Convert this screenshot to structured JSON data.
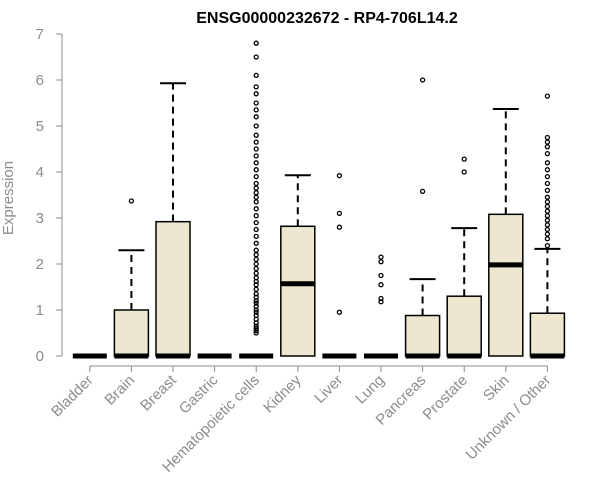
{
  "chart_data": {
    "type": "boxplot",
    "title": "ENSG00000232672 - RP4-706L14.2",
    "ylabel": "Expression",
    "xlabel": "",
    "ylim": [
      0,
      7
    ],
    "yticks": [
      0,
      1,
      2,
      3,
      4,
      5,
      6,
      7
    ],
    "box_fill": "#ede7cf",
    "box_stroke": "#000000",
    "axis_color": "#8c8c8c",
    "categories": [
      "Bladder",
      "Brain",
      "Breast",
      "Gastric",
      "Hematopoietic cells",
      "Kidney",
      "Liver",
      "Lung",
      "Pancreas",
      "Prostate",
      "Skin",
      "Unknown / Other"
    ],
    "boxes": [
      {
        "category": "Bladder",
        "q1": 0,
        "median": 0,
        "q3": 0,
        "whisker_low": 0,
        "whisker_high": 0,
        "outliers": []
      },
      {
        "category": "Brain",
        "q1": 0,
        "median": 0,
        "q3": 1.0,
        "whisker_low": 0,
        "whisker_high": 2.3,
        "outliers": [
          3.37
        ]
      },
      {
        "category": "Breast",
        "q1": 0,
        "median": 0,
        "q3": 2.92,
        "whisker_low": 0,
        "whisker_high": 5.93,
        "outliers": []
      },
      {
        "category": "Gastric",
        "q1": 0,
        "median": 0,
        "q3": 0,
        "whisker_low": 0,
        "whisker_high": 0,
        "outliers": []
      },
      {
        "category": "Hematopoietic cells",
        "q1": 0,
        "median": 0,
        "q3": 0,
        "whisker_low": 0,
        "whisker_high": 0,
        "outliers": [
          0.5,
          0.55,
          0.6,
          0.65,
          0.72,
          0.8,
          0.88,
          0.95,
          1.0,
          1.08,
          1.15,
          1.2,
          1.28,
          1.35,
          1.45,
          1.55,
          1.62,
          1.7,
          1.8,
          1.9,
          2.0,
          2.1,
          2.2,
          2.3,
          2.45,
          2.6,
          2.75,
          2.9,
          3.05,
          3.2,
          3.35,
          3.45,
          3.55,
          3.65,
          3.75,
          3.9,
          4.05,
          4.2,
          4.35,
          4.5,
          4.65,
          4.8,
          5.0,
          5.2,
          5.35,
          5.5,
          5.7,
          5.85,
          6.1,
          6.5,
          6.8
        ]
      },
      {
        "category": "Kidney",
        "q1": 0,
        "median": 1.57,
        "q3": 2.82,
        "whisker_low": 0,
        "whisker_high": 3.93,
        "outliers": []
      },
      {
        "category": "Liver",
        "q1": 0,
        "median": 0,
        "q3": 0,
        "whisker_low": 0,
        "whisker_high": 0,
        "outliers": [
          0.95,
          2.8,
          3.1,
          3.92
        ]
      },
      {
        "category": "Lung",
        "q1": 0,
        "median": 0,
        "q3": 0,
        "whisker_low": 0,
        "whisker_high": 0,
        "outliers": [
          1.18,
          1.25,
          1.55,
          1.75,
          2.05,
          2.15
        ]
      },
      {
        "category": "Pancreas",
        "q1": 0,
        "median": 0,
        "q3": 0.88,
        "whisker_low": 0,
        "whisker_high": 1.67,
        "outliers": [
          3.58,
          6.0
        ]
      },
      {
        "category": "Prostate",
        "q1": 0,
        "median": 0,
        "q3": 1.3,
        "whisker_low": 0,
        "whisker_high": 2.78,
        "outliers": [
          4.0,
          4.28
        ]
      },
      {
        "category": "Skin",
        "q1": 0,
        "median": 1.98,
        "q3": 3.08,
        "whisker_low": 0,
        "whisker_high": 5.37,
        "outliers": []
      },
      {
        "category": "Unknown / Other",
        "q1": 0,
        "median": 0,
        "q3": 0.93,
        "whisker_low": 0,
        "whisker_high": 2.33,
        "outliers": [
          2.4,
          2.55,
          2.65,
          2.75,
          2.85,
          2.95,
          3.05,
          3.15,
          3.25,
          3.35,
          3.45,
          3.6,
          3.75,
          3.9,
          4.05,
          4.2,
          4.4,
          4.55,
          4.65,
          4.75,
          5.65
        ]
      }
    ]
  }
}
